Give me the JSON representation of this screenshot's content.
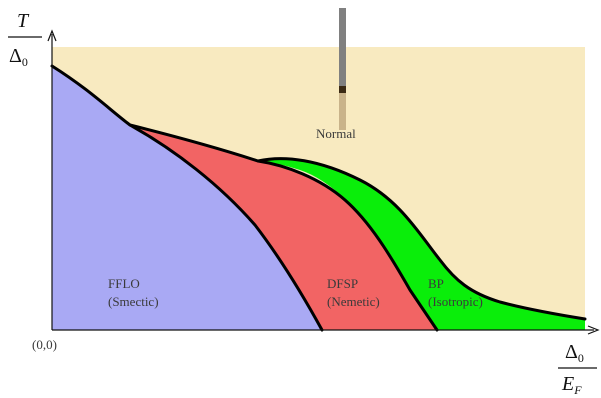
{
  "regions": {
    "normal": {
      "label": "Normal",
      "color": "#f8eac0"
    },
    "fflo": {
      "label_line1": "FFLO",
      "label_line2": "(Smectic)",
      "color": "#a9a9f4"
    },
    "dfsp": {
      "label_line1": "DFSP",
      "label_line2": "(Nemetic)",
      "color": "#f26464"
    },
    "bp": {
      "label_line1": "BP",
      "label_line2": "(Isotropic)",
      "color": "#0aee0a"
    }
  },
  "axes": {
    "origin_label": "(0,0)",
    "y_label": {
      "numerator": "T",
      "denominator_base": "Δ",
      "denominator_sub": "0"
    },
    "x_label": {
      "numerator_base": "Δ",
      "numerator_sub": "0",
      "denominator_base": "E",
      "denominator_sub": "F"
    }
  },
  "probe": {
    "upper_color": "#808080",
    "band_color": "#3b2a14",
    "lower_color": "#c9b38a"
  },
  "colors": {
    "boundary": "#000000",
    "axis": "#111111"
  }
}
